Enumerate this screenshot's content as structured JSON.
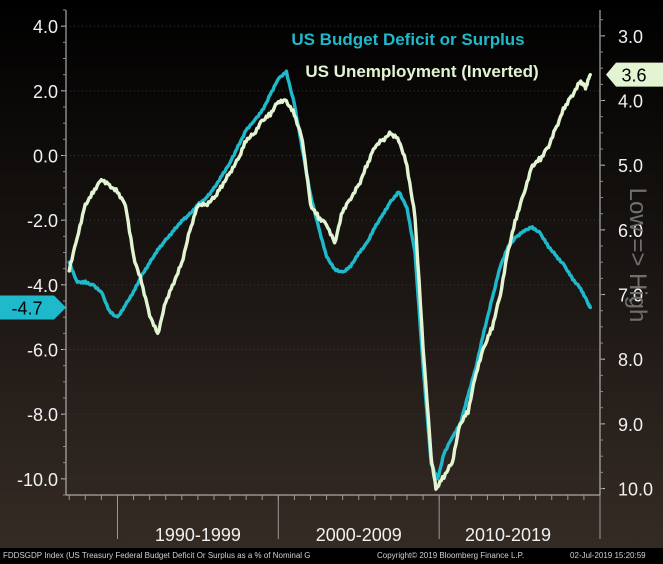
{
  "chart_data": {
    "type": "line",
    "title": "US Budget Deficit or Surplus",
    "subtitle": "US Unemployment (Inverted)",
    "right_axis_caption": "Low => High",
    "x_period_labels": [
      "1990-1999",
      "2000-2009",
      "2010-2019"
    ],
    "left_axis": {
      "ylim": [
        -10.5,
        4.5
      ],
      "ticks": [
        4.0,
        2.0,
        0.0,
        -2.0,
        -4.0,
        -6.0,
        -8.0,
        -10.0
      ],
      "tick_labels": [
        "4.0",
        "2.0",
        "0.0",
        "-2.0",
        "-4.0",
        "-6.0",
        "-8.0",
        "-10.0"
      ]
    },
    "right_axis": {
      "inverted": true,
      "ylim": [
        2.6,
        10.1
      ],
      "ticks": [
        3.0,
        4.0,
        5.0,
        6.0,
        7.0,
        8.0,
        9.0,
        10.0
      ],
      "tick_labels": [
        "3.0",
        "4.0",
        "5.0",
        "6.0",
        "7.0",
        "8.0",
        "9.0",
        "10.0"
      ]
    },
    "xlim": [
      1986.8,
      2020.0
    ],
    "series": [
      {
        "name": "US Budget Deficit or Surplus",
        "color": "#1fb9cc",
        "axis": "left",
        "last_value_label": "-4.7",
        "points": [
          [
            1987.0,
            -3.3
          ],
          [
            1987.5,
            -3.9
          ],
          [
            1988.0,
            -3.9
          ],
          [
            1988.5,
            -4.0
          ],
          [
            1989.0,
            -4.2
          ],
          [
            1989.5,
            -4.8
          ],
          [
            1990.0,
            -5.0
          ],
          [
            1990.5,
            -4.6
          ],
          [
            1991.0,
            -4.2
          ],
          [
            1991.5,
            -3.7
          ],
          [
            1992.0,
            -3.3
          ],
          [
            1992.5,
            -2.9
          ],
          [
            1993.0,
            -2.6
          ],
          [
            1993.5,
            -2.3
          ],
          [
            1994.0,
            -2.0
          ],
          [
            1994.5,
            -1.8
          ],
          [
            1995.0,
            -1.5
          ],
          [
            1995.5,
            -1.3
          ],
          [
            1996.0,
            -1.0
          ],
          [
            1996.5,
            -0.6
          ],
          [
            1997.0,
            -0.2
          ],
          [
            1997.5,
            0.3
          ],
          [
            1998.0,
            0.8
          ],
          [
            1998.5,
            1.1
          ],
          [
            1999.0,
            1.4
          ],
          [
            1999.5,
            1.9
          ],
          [
            2000.0,
            2.4
          ],
          [
            2000.5,
            2.6
          ],
          [
            2001.0,
            1.6
          ],
          [
            2001.5,
            0.2
          ],
          [
            2002.0,
            -1.2
          ],
          [
            2002.5,
            -2.2
          ],
          [
            2003.0,
            -3.1
          ],
          [
            2003.5,
            -3.5
          ],
          [
            2004.0,
            -3.6
          ],
          [
            2004.5,
            -3.4
          ],
          [
            2005.0,
            -3.0
          ],
          [
            2005.5,
            -2.7
          ],
          [
            2006.0,
            -2.2
          ],
          [
            2006.5,
            -1.8
          ],
          [
            2007.0,
            -1.4
          ],
          [
            2007.5,
            -1.1
          ],
          [
            2008.0,
            -1.6
          ],
          [
            2008.5,
            -3.0
          ],
          [
            2009.0,
            -6.5
          ],
          [
            2009.5,
            -9.5
          ],
          [
            2009.9,
            -10.0
          ],
          [
            2010.3,
            -9.2
          ],
          [
            2010.8,
            -8.7
          ],
          [
            2011.3,
            -8.3
          ],
          [
            2011.8,
            -7.4
          ],
          [
            2012.3,
            -6.5
          ],
          [
            2012.8,
            -5.4
          ],
          [
            2013.3,
            -4.4
          ],
          [
            2013.8,
            -3.4
          ],
          [
            2014.3,
            -2.8
          ],
          [
            2014.8,
            -2.5
          ],
          [
            2015.3,
            -2.3
          ],
          [
            2015.8,
            -2.2
          ],
          [
            2016.3,
            -2.4
          ],
          [
            2016.8,
            -2.8
          ],
          [
            2017.3,
            -3.1
          ],
          [
            2017.8,
            -3.4
          ],
          [
            2018.3,
            -3.8
          ],
          [
            2018.8,
            -4.1
          ],
          [
            2019.2,
            -4.5
          ],
          [
            2019.4,
            -4.7
          ]
        ]
      },
      {
        "name": "US Unemployment (Inverted)",
        "color": "#e3f4d3",
        "axis": "right",
        "last_value_label": "3.6",
        "points": [
          [
            1987.0,
            6.6
          ],
          [
            1987.5,
            6.1
          ],
          [
            1988.0,
            5.6
          ],
          [
            1988.5,
            5.4
          ],
          [
            1989.0,
            5.2
          ],
          [
            1989.5,
            5.3
          ],
          [
            1990.0,
            5.4
          ],
          [
            1990.5,
            5.6
          ],
          [
            1991.0,
            6.4
          ],
          [
            1991.5,
            6.8
          ],
          [
            1992.0,
            7.3
          ],
          [
            1992.5,
            7.6
          ],
          [
            1993.0,
            7.1
          ],
          [
            1993.5,
            6.8
          ],
          [
            1994.0,
            6.5
          ],
          [
            1994.5,
            6.0
          ],
          [
            1995.0,
            5.6
          ],
          [
            1995.5,
            5.6
          ],
          [
            1996.0,
            5.5
          ],
          [
            1996.5,
            5.3
          ],
          [
            1997.0,
            5.1
          ],
          [
            1997.5,
            4.9
          ],
          [
            1998.0,
            4.6
          ],
          [
            1998.5,
            4.5
          ],
          [
            1999.0,
            4.3
          ],
          [
            1999.5,
            4.2
          ],
          [
            2000.0,
            4.0
          ],
          [
            2000.5,
            4.0
          ],
          [
            2001.0,
            4.2
          ],
          [
            2001.5,
            4.6
          ],
          [
            2002.0,
            5.6
          ],
          [
            2002.5,
            5.8
          ],
          [
            2003.0,
            5.9
          ],
          [
            2003.5,
            6.2
          ],
          [
            2004.0,
            5.7
          ],
          [
            2004.5,
            5.5
          ],
          [
            2005.0,
            5.3
          ],
          [
            2005.5,
            5.0
          ],
          [
            2006.0,
            4.7
          ],
          [
            2006.5,
            4.6
          ],
          [
            2007.0,
            4.5
          ],
          [
            2007.5,
            4.6
          ],
          [
            2008.0,
            5.0
          ],
          [
            2008.5,
            5.8
          ],
          [
            2009.0,
            7.8
          ],
          [
            2009.5,
            9.5
          ],
          [
            2009.8,
            10.0
          ],
          [
            2010.3,
            9.8
          ],
          [
            2010.8,
            9.6
          ],
          [
            2011.3,
            9.0
          ],
          [
            2011.8,
            8.8
          ],
          [
            2012.3,
            8.2
          ],
          [
            2012.8,
            7.8
          ],
          [
            2013.3,
            7.5
          ],
          [
            2013.8,
            7.0
          ],
          [
            2014.3,
            6.3
          ],
          [
            2014.8,
            5.8
          ],
          [
            2015.3,
            5.4
          ],
          [
            2015.8,
            5.0
          ],
          [
            2016.3,
            4.9
          ],
          [
            2016.8,
            4.7
          ],
          [
            2017.3,
            4.4
          ],
          [
            2017.8,
            4.1
          ],
          [
            2018.3,
            3.9
          ],
          [
            2018.8,
            3.7
          ],
          [
            2019.1,
            3.8
          ],
          [
            2019.4,
            3.6
          ]
        ]
      }
    ]
  },
  "footer": {
    "source": "FDDSGDP Index (US Treasury Federal Budget Deficit Or Surplus as a % of Nominal G",
    "copyright": "Copyright© 2019 Bloomberg Finance L.P.",
    "timestamp": "02-Jul-2019 15:20:59"
  }
}
